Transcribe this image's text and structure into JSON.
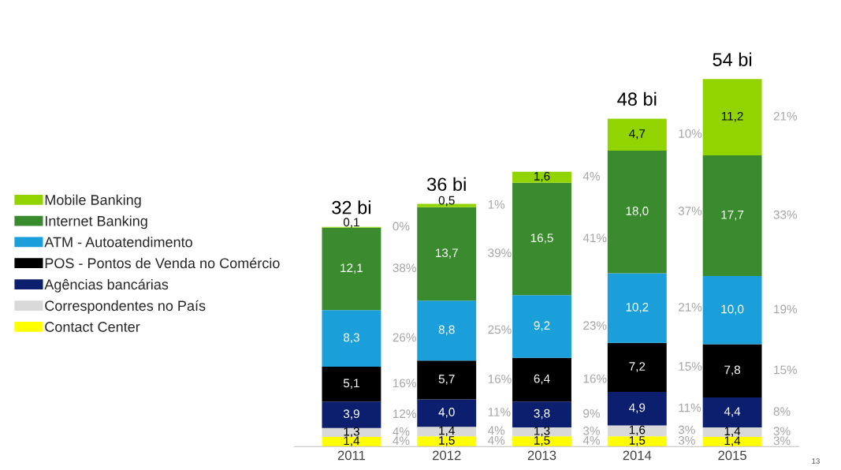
{
  "chart_data": {
    "type": "bar",
    "stacked": true,
    "categories": [
      "2011",
      "2012",
      "2013",
      "2014",
      "2015"
    ],
    "series": [
      {
        "name": "Contact Center",
        "color": "#ffff00",
        "values": [
          1.4,
          1.5,
          1.5,
          1.5,
          1.4
        ],
        "value_labels": [
          "1,4",
          "1,5",
          "1,5",
          "1,5",
          "1,4"
        ]
      },
      {
        "name": "Correspondentes no País",
        "color": "#d9d9d9",
        "values": [
          1.3,
          1.4,
          1.3,
          1.6,
          1.4
        ],
        "value_labels": [
          "1,3",
          "1,4",
          "1,3",
          "1,6",
          "1,4"
        ]
      },
      {
        "name": "Agências bancárias",
        "color": "#0b1f6e",
        "values": [
          3.9,
          4.0,
          3.8,
          4.9,
          4.4
        ],
        "value_labels": [
          "3,9",
          "4,0",
          "3,8",
          "4,9",
          "4,4"
        ]
      },
      {
        "name": "POS - Pontos de Venda no Comércio",
        "color": "#000000",
        "values": [
          5.1,
          5.7,
          6.4,
          7.2,
          7.8
        ],
        "value_labels": [
          "5,1",
          "5,7",
          "6,4",
          "7,2",
          "7,8"
        ]
      },
      {
        "name": "ATM - Autoatendimento",
        "color": "#1a9fdb",
        "values": [
          8.3,
          8.8,
          9.2,
          10.2,
          10.0
        ],
        "value_labels": [
          "8,3",
          "8,8",
          "9,2",
          "10,2",
          "10,0"
        ]
      },
      {
        "name": "Internet Banking",
        "color": "#3a8a2e",
        "values": [
          12.1,
          13.7,
          16.5,
          18.0,
          17.7
        ],
        "value_labels": [
          "12,1",
          "13,7",
          "16,5",
          "18,0",
          "17,7"
        ]
      },
      {
        "name": "Mobile Banking",
        "color": "#92d400",
        "values": [
          0.1,
          0.5,
          1.6,
          4.7,
          11.2
        ],
        "value_labels": [
          "0,1",
          "0,5",
          "1,6",
          "4,7",
          "11,2"
        ]
      }
    ],
    "totals": [
      "32 bi",
      "36 bi",
      null,
      "48 bi",
      "54 bi"
    ],
    "legend": "left",
    "grid": false,
    "tick_labels": "x",
    "annotations": [
      "4%",
      "4%",
      "12%",
      "16%",
      "26%",
      "38%",
      "0%",
      "4%",
      "4%",
      "11%",
      "16%",
      "25%",
      "39%",
      "1%",
      "4%",
      "3%",
      "9%",
      "16%",
      "23%",
      "41%",
      "4%",
      "3%",
      "3%",
      "11%",
      "15%",
      "21%",
      "37%",
      "10%",
      "3%",
      "3%",
      "8%",
      "15%",
      "19%",
      "33%",
      "21%",
      "13"
    ]
  }
}
